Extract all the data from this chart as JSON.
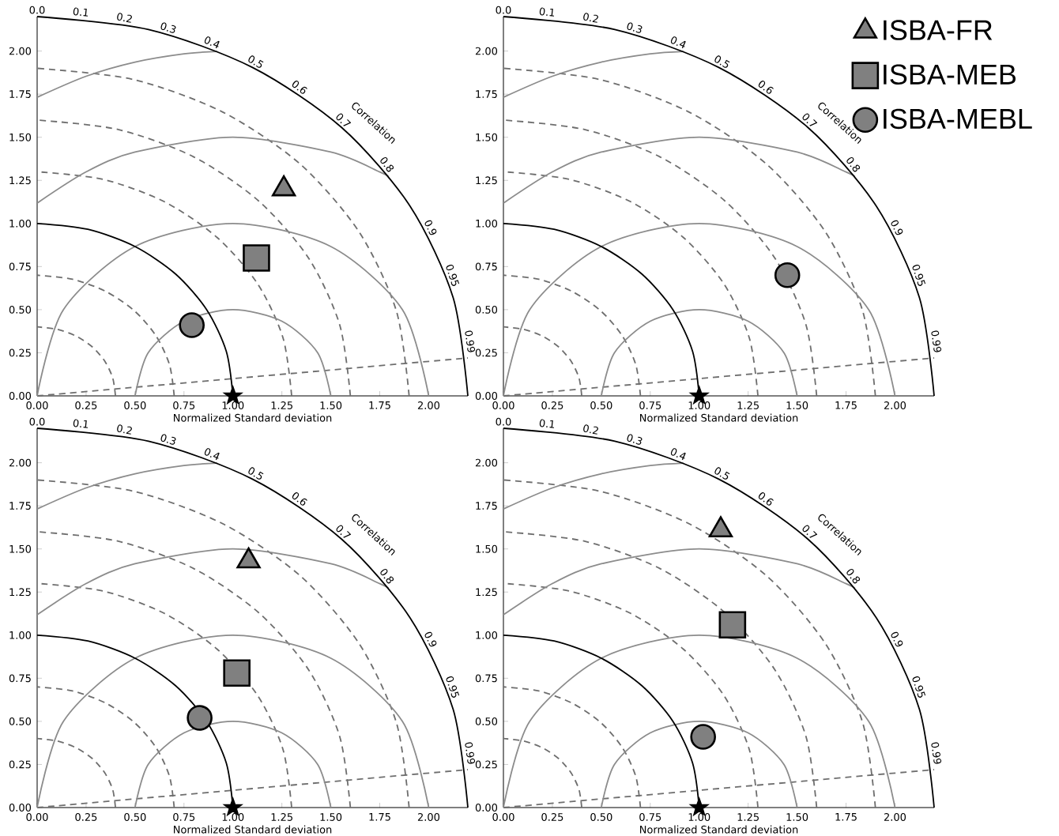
{
  "chart_data": [
    {
      "type": "scatter",
      "xlabel": "Normalized Standard deviation",
      "xlim": [
        0,
        2.2
      ],
      "ylim": [
        0,
        2.2
      ],
      "xticks": [
        {
          "value": 0,
          "label": "0.00"
        },
        {
          "value": 0.25,
          "label": "0.25"
        },
        {
          "value": 0.5,
          "label": "0.50"
        },
        {
          "value": 0.75,
          "label": "0.75"
        },
        {
          "value": 1,
          "label": "1.00"
        },
        {
          "value": 1.25,
          "label": "1.25"
        },
        {
          "value": 1.5,
          "label": "1.50"
        },
        {
          "value": 1.75,
          "label": "1.75"
        },
        {
          "value": 2,
          "label": "2.00"
        }
      ],
      "yticks": [
        {
          "value": 0,
          "label": "0.00"
        },
        {
          "value": 0.25,
          "label": "0.25"
        },
        {
          "value": 0.5,
          "label": "0.50"
        },
        {
          "value": 0.75,
          "label": "0.75"
        },
        {
          "value": 1,
          "label": "1.00"
        },
        {
          "value": 1.25,
          "label": "1.25"
        },
        {
          "value": 1.5,
          "label": "1.50"
        },
        {
          "value": 1.75,
          "label": "1.75"
        },
        {
          "value": 2,
          "label": "2.00"
        }
      ],
      "annotations": [
        "Correlation",
        {
          "text": "0.0",
          "x": 0,
          "y": 2.2
        },
        {
          "text": "0.1",
          "x": 0.22,
          "y": 2.189
        },
        {
          "text": "0.2",
          "x": 0.44,
          "y": 2.156
        },
        {
          "text": "0.3",
          "x": 0.66,
          "y": 2.099
        },
        {
          "text": "0.4",
          "x": 0.88,
          "y": 2.016
        },
        {
          "text": "0.5",
          "x": 1.1,
          "y": 1.905
        },
        {
          "text": "0.6",
          "x": 1.32,
          "y": 1.76
        },
        {
          "text": "0.7",
          "x": 1.54,
          "y": 1.571
        },
        {
          "text": "0.8",
          "x": 1.76,
          "y": 1.32
        },
        {
          "text": "0.9",
          "x": 1.98,
          "y": 0.959
        },
        {
          "text": "0.95",
          "x": 2.09,
          "y": 0.687
        },
        {
          "text": "0.99",
          "x": 2.178,
          "y": 0.31
        }
      ],
      "series": [
        {
          "type": "line",
          "color": "#6e6e6e",
          "line_style": "dashed",
          "x": [
            0.4,
            0.386,
            0.346,
            0.283,
            0.2,
            0.104,
            0
          ],
          "values": [
            0,
            0.104,
            0.2,
            0.283,
            0.346,
            0.386,
            0.4
          ]
        },
        {
          "type": "line",
          "color": "#6e6e6e",
          "line_style": "dashed",
          "x": [
            0.7,
            0.676,
            0.606,
            0.495,
            0.35,
            0.181,
            0
          ],
          "values": [
            0,
            0.181,
            0.35,
            0.495,
            0.606,
            0.676,
            0.7
          ]
        },
        {
          "type": "line",
          "color": "#6e6e6e",
          "line_style": "dashed",
          "x": [
            1.3,
            1.256,
            1.126,
            0.919,
            0.65,
            0.336,
            0
          ],
          "values": [
            0,
            0.336,
            0.65,
            0.919,
            1.126,
            1.256,
            1.3
          ]
        },
        {
          "type": "line",
          "color": "#6e6e6e",
          "line_style": "dashed",
          "x": [
            1.6,
            1.545,
            1.386,
            1.131,
            0.8,
            0.414,
            0
          ],
          "values": [
            0,
            0.414,
            0.8,
            1.131,
            1.386,
            1.545,
            1.6
          ]
        },
        {
          "type": "line",
          "color": "#6e6e6e",
          "line_style": "dashed",
          "x": [
            1.9,
            1.835,
            1.645,
            1.344,
            0.95,
            0.492,
            0
          ],
          "values": [
            0,
            0.492,
            0.95,
            1.344,
            1.645,
            1.835,
            1.9
          ]
        },
        {
          "type": "line",
          "color": "#6e6e6e",
          "line_style": "dashed",
          "x": [
            0,
            2.2
          ],
          "values": [
            0,
            0.22
          ]
        },
        {
          "type": "line",
          "color": "#8c8c8c",
          "line_style": "solid",
          "x": [
            1.5,
            1.433,
            1.25,
            1,
            0.75,
            0.567,
            0.5
          ],
          "values": [
            0,
            0.25,
            0.433,
            0.5,
            0.433,
            0.25,
            0
          ]
        },
        {
          "type": "line",
          "color": "#8c8c8c",
          "line_style": "solid",
          "x": [
            2,
            1.866,
            1.5,
            1,
            0.5,
            0.134,
            0
          ],
          "values": [
            0,
            0.5,
            0.866,
            1,
            0.866,
            0.5,
            0
          ]
        },
        {
          "type": "line",
          "color": "#8c8c8c",
          "line_style": "solid",
          "x": [
            0,
            0.25,
            0.5,
            1,
            1.5,
            1.75,
            1.795
          ],
          "values": [
            1.118,
            1.299,
            1.414,
            1.5,
            1.414,
            1.299,
            1.272
          ]
        },
        {
          "type": "line",
          "color": "#8c8c8c",
          "line_style": "solid",
          "x": [
            0,
            0.25,
            0.5,
            0.75,
            0.92
          ],
          "values": [
            1.732,
            1.854,
            1.936,
            1.984,
            1.998
          ]
        },
        {
          "type": "line",
          "color": "#000000",
          "line_style": "solid",
          "x": [
            1,
            0.966,
            0.866,
            0.707,
            0.5,
            0.259,
            0
          ],
          "values": [
            0,
            0.259,
            0.5,
            0.707,
            0.866,
            0.966,
            1
          ]
        },
        {
          "type": "line",
          "color": "#000000",
          "line_style": "solid",
          "x": [
            2.2,
            2.125,
            1.905,
            1.556,
            1.1,
            0.569,
            0
          ],
          "values": [
            0,
            0.569,
            1.1,
            1.556,
            1.905,
            2.125,
            2.2
          ]
        },
        {
          "marker": "star",
          "color": "#000000",
          "x": [
            1
          ],
          "values": [
            0
          ]
        },
        {
          "marker": "triangle",
          "color": "#808080",
          "x": [
            1.26
          ],
          "values": [
            1.2
          ]
        },
        {
          "marker": "square",
          "color": "#808080",
          "x": [
            1.12
          ],
          "values": [
            0.8
          ]
        },
        {
          "marker": "circle",
          "color": "#808080",
          "x": [
            0.79
          ],
          "values": [
            0.41
          ]
        }
      ]
    },
    {
      "type": "scatter",
      "xlabel": "Normalized Standard deviation",
      "xlim": [
        0,
        2.2
      ],
      "ylim": [
        0,
        2.2
      ],
      "legend": "right",
      "xticks": [
        {
          "value": 0,
          "label": "0.00"
        },
        {
          "value": 0.25,
          "label": "0.25"
        },
        {
          "value": 0.5,
          "label": "0.50"
        },
        {
          "value": 0.75,
          "label": "0.75"
        },
        {
          "value": 1,
          "label": "1.00"
        },
        {
          "value": 1.25,
          "label": "1.25"
        },
        {
          "value": 1.5,
          "label": "1.50"
        },
        {
          "value": 1.75,
          "label": "1.75"
        },
        {
          "value": 2,
          "label": "2.00"
        }
      ],
      "yticks": [
        {
          "value": 0,
          "label": "0.00"
        },
        {
          "value": 0.25,
          "label": "0.25"
        },
        {
          "value": 0.5,
          "label": "0.50"
        },
        {
          "value": 0.75,
          "label": "0.75"
        },
        {
          "value": 1,
          "label": "1.00"
        },
        {
          "value": 1.25,
          "label": "1.25"
        },
        {
          "value": 1.5,
          "label": "1.50"
        },
        {
          "value": 1.75,
          "label": "1.75"
        },
        {
          "value": 2,
          "label": "2.00"
        }
      ],
      "annotations": [
        "Correlation",
        {
          "text": "0.0",
          "x": 0,
          "y": 2.2
        },
        {
          "text": "0.1",
          "x": 0.22,
          "y": 2.189
        },
        {
          "text": "0.2",
          "x": 0.44,
          "y": 2.156
        },
        {
          "text": "0.3",
          "x": 0.66,
          "y": 2.099
        },
        {
          "text": "0.4",
          "x": 0.88,
          "y": 2.016
        },
        {
          "text": "0.5",
          "x": 1.1,
          "y": 1.905
        },
        {
          "text": "0.6",
          "x": 1.32,
          "y": 1.76
        },
        {
          "text": "0.7",
          "x": 1.54,
          "y": 1.571
        },
        {
          "text": "0.8",
          "x": 1.76,
          "y": 1.32
        },
        {
          "text": "0.9",
          "x": 1.98,
          "y": 0.959
        },
        {
          "text": "0.95",
          "x": 2.09,
          "y": 0.687
        },
        {
          "text": "0.99",
          "x": 2.178,
          "y": 0.31
        }
      ],
      "series": [
        {
          "type": "line",
          "color": "#6e6e6e",
          "line_style": "dashed",
          "x": [
            0.4,
            0.386,
            0.346,
            0.283,
            0.2,
            0.104,
            0
          ],
          "values": [
            0,
            0.104,
            0.2,
            0.283,
            0.346,
            0.386,
            0.4
          ]
        },
        {
          "type": "line",
          "color": "#6e6e6e",
          "line_style": "dashed",
          "x": [
            0.7,
            0.676,
            0.606,
            0.495,
            0.35,
            0.181,
            0
          ],
          "values": [
            0,
            0.181,
            0.35,
            0.495,
            0.606,
            0.676,
            0.7
          ]
        },
        {
          "type": "line",
          "color": "#6e6e6e",
          "line_style": "dashed",
          "x": [
            1.3,
            1.256,
            1.126,
            0.919,
            0.65,
            0.336,
            0
          ],
          "values": [
            0,
            0.336,
            0.65,
            0.919,
            1.126,
            1.256,
            1.3
          ]
        },
        {
          "type": "line",
          "color": "#6e6e6e",
          "line_style": "dashed",
          "x": [
            1.6,
            1.545,
            1.386,
            1.131,
            0.8,
            0.414,
            0
          ],
          "values": [
            0,
            0.414,
            0.8,
            1.131,
            1.386,
            1.545,
            1.6
          ]
        },
        {
          "type": "line",
          "color": "#6e6e6e",
          "line_style": "dashed",
          "x": [
            1.9,
            1.835,
            1.645,
            1.344,
            0.95,
            0.492,
            0
          ],
          "values": [
            0,
            0.492,
            0.95,
            1.344,
            1.645,
            1.835,
            1.9
          ]
        },
        {
          "type": "line",
          "color": "#6e6e6e",
          "line_style": "dashed",
          "x": [
            0,
            2.2
          ],
          "values": [
            0,
            0.22
          ]
        },
        {
          "type": "line",
          "color": "#8c8c8c",
          "line_style": "solid",
          "x": [
            1.5,
            1.433,
            1.25,
            1,
            0.75,
            0.567,
            0.5
          ],
          "values": [
            0,
            0.25,
            0.433,
            0.5,
            0.433,
            0.25,
            0
          ]
        },
        {
          "type": "line",
          "color": "#8c8c8c",
          "line_style": "solid",
          "x": [
            2,
            1.866,
            1.5,
            1,
            0.5,
            0.134,
            0
          ],
          "values": [
            0,
            0.5,
            0.866,
            1,
            0.866,
            0.5,
            0
          ]
        },
        {
          "type": "line",
          "color": "#8c8c8c",
          "line_style": "solid",
          "x": [
            0,
            0.25,
            0.5,
            1,
            1.5,
            1.75,
            1.795
          ],
          "values": [
            1.118,
            1.299,
            1.414,
            1.5,
            1.414,
            1.299,
            1.272
          ]
        },
        {
          "type": "line",
          "color": "#8c8c8c",
          "line_style": "solid",
          "x": [
            0,
            0.25,
            0.5,
            0.75,
            0.92
          ],
          "values": [
            1.732,
            1.854,
            1.936,
            1.984,
            1.998
          ]
        },
        {
          "type": "line",
          "color": "#000000",
          "line_style": "solid",
          "x": [
            1,
            0.966,
            0.866,
            0.707,
            0.5,
            0.259,
            0
          ],
          "values": [
            0,
            0.259,
            0.5,
            0.707,
            0.866,
            0.966,
            1
          ]
        },
        {
          "type": "line",
          "color": "#000000",
          "line_style": "solid",
          "x": [
            2.2,
            2.125,
            1.905,
            1.556,
            1.1,
            0.569,
            0
          ],
          "values": [
            0,
            0.569,
            1.1,
            1.556,
            1.905,
            2.125,
            2.2
          ]
        },
        {
          "marker": "star",
          "color": "#000000",
          "x": [
            1
          ],
          "values": [
            0
          ]
        },
        {
          "name": "ISBA-FR",
          "marker": "triangle",
          "color": "#808080",
          "x": [
            null
          ],
          "values": [
            null
          ]
        },
        {
          "name": "ISBA-MEB",
          "marker": "square",
          "color": "#808080",
          "x": [
            null
          ],
          "values": [
            null
          ]
        },
        {
          "name": "ISBA-MEBL",
          "marker": "circle",
          "color": "#808080",
          "x": [
            1.45
          ],
          "values": [
            0.7
          ]
        }
      ]
    },
    {
      "type": "scatter",
      "xlabel": "Normalized Standard deviation",
      "xlim": [
        0,
        2.2
      ],
      "ylim": [
        0,
        2.2
      ],
      "xticks": [
        {
          "value": 0,
          "label": "0.00"
        },
        {
          "value": 0.25,
          "label": "0.25"
        },
        {
          "value": 0.5,
          "label": "0.50"
        },
        {
          "value": 0.75,
          "label": "0.75"
        },
        {
          "value": 1,
          "label": "1.00"
        },
        {
          "value": 1.25,
          "label": "1.25"
        },
        {
          "value": 1.5,
          "label": "1.50"
        },
        {
          "value": 1.75,
          "label": "1.75"
        },
        {
          "value": 2,
          "label": "2.00"
        }
      ],
      "yticks": [
        {
          "value": 0,
          "label": "0.00"
        },
        {
          "value": 0.25,
          "label": "0.25"
        },
        {
          "value": 0.5,
          "label": "0.50"
        },
        {
          "value": 0.75,
          "label": "0.75"
        },
        {
          "value": 1,
          "label": "1.00"
        },
        {
          "value": 1.25,
          "label": "1.25"
        },
        {
          "value": 1.5,
          "label": "1.50"
        },
        {
          "value": 1.75,
          "label": "1.75"
        },
        {
          "value": 2,
          "label": "2.00"
        }
      ],
      "annotations": [
        "Correlation",
        {
          "text": "0.0",
          "x": 0,
          "y": 2.2
        },
        {
          "text": "0.1",
          "x": 0.22,
          "y": 2.189
        },
        {
          "text": "0.2",
          "x": 0.44,
          "y": 2.156
        },
        {
          "text": "0.3",
          "x": 0.66,
          "y": 2.099
        },
        {
          "text": "0.4",
          "x": 0.88,
          "y": 2.016
        },
        {
          "text": "0.5",
          "x": 1.1,
          "y": 1.905
        },
        {
          "text": "0.6",
          "x": 1.32,
          "y": 1.76
        },
        {
          "text": "0.7",
          "x": 1.54,
          "y": 1.571
        },
        {
          "text": "0.8",
          "x": 1.76,
          "y": 1.32
        },
        {
          "text": "0.9",
          "x": 1.98,
          "y": 0.959
        },
        {
          "text": "0.95",
          "x": 2.09,
          "y": 0.687
        },
        {
          "text": "0.99",
          "x": 2.178,
          "y": 0.31
        }
      ],
      "series": [
        {
          "type": "line",
          "color": "#6e6e6e",
          "line_style": "dashed",
          "x": [
            0.4,
            0.386,
            0.346,
            0.283,
            0.2,
            0.104,
            0
          ],
          "values": [
            0,
            0.104,
            0.2,
            0.283,
            0.346,
            0.386,
            0.4
          ]
        },
        {
          "type": "line",
          "color": "#6e6e6e",
          "line_style": "dashed",
          "x": [
            0.7,
            0.676,
            0.606,
            0.495,
            0.35,
            0.181,
            0
          ],
          "values": [
            0,
            0.181,
            0.35,
            0.495,
            0.606,
            0.676,
            0.7
          ]
        },
        {
          "type": "line",
          "color": "#6e6e6e",
          "line_style": "dashed",
          "x": [
            1.3,
            1.256,
            1.126,
            0.919,
            0.65,
            0.336,
            0
          ],
          "values": [
            0,
            0.336,
            0.65,
            0.919,
            1.126,
            1.256,
            1.3
          ]
        },
        {
          "type": "line",
          "color": "#6e6e6e",
          "line_style": "dashed",
          "x": [
            1.6,
            1.545,
            1.386,
            1.131,
            0.8,
            0.414,
            0
          ],
          "values": [
            0,
            0.414,
            0.8,
            1.131,
            1.386,
            1.545,
            1.6
          ]
        },
        {
          "type": "line",
          "color": "#6e6e6e",
          "line_style": "dashed",
          "x": [
            1.9,
            1.835,
            1.645,
            1.344,
            0.95,
            0.492,
            0
          ],
          "values": [
            0,
            0.492,
            0.95,
            1.344,
            1.645,
            1.835,
            1.9
          ]
        },
        {
          "type": "line",
          "color": "#6e6e6e",
          "line_style": "dashed",
          "x": [
            0,
            2.2
          ],
          "values": [
            0,
            0.22
          ]
        },
        {
          "type": "line",
          "color": "#8c8c8c",
          "line_style": "solid",
          "x": [
            1.5,
            1.433,
            1.25,
            1,
            0.75,
            0.567,
            0.5
          ],
          "values": [
            0,
            0.25,
            0.433,
            0.5,
            0.433,
            0.25,
            0
          ]
        },
        {
          "type": "line",
          "color": "#8c8c8c",
          "line_style": "solid",
          "x": [
            2,
            1.866,
            1.5,
            1,
            0.5,
            0.134,
            0
          ],
          "values": [
            0,
            0.5,
            0.866,
            1,
            0.866,
            0.5,
            0
          ]
        },
        {
          "type": "line",
          "color": "#8c8c8c",
          "line_style": "solid",
          "x": [
            0,
            0.25,
            0.5,
            1,
            1.5,
            1.75,
            1.795
          ],
          "values": [
            1.118,
            1.299,
            1.414,
            1.5,
            1.414,
            1.299,
            1.272
          ]
        },
        {
          "type": "line",
          "color": "#8c8c8c",
          "line_style": "solid",
          "x": [
            0,
            0.25,
            0.5,
            0.75,
            0.92
          ],
          "values": [
            1.732,
            1.854,
            1.936,
            1.984,
            1.998
          ]
        },
        {
          "type": "line",
          "color": "#000000",
          "line_style": "solid",
          "x": [
            1,
            0.966,
            0.866,
            0.707,
            0.5,
            0.259,
            0
          ],
          "values": [
            0,
            0.259,
            0.5,
            0.707,
            0.866,
            0.966,
            1
          ]
        },
        {
          "type": "line",
          "color": "#000000",
          "line_style": "solid",
          "x": [
            2.2,
            2.125,
            1.905,
            1.556,
            1.1,
            0.569,
            0
          ],
          "values": [
            0,
            0.569,
            1.1,
            1.556,
            1.905,
            2.125,
            2.2
          ]
        },
        {
          "marker": "star",
          "color": "#000000",
          "x": [
            1
          ],
          "values": [
            0
          ]
        },
        {
          "marker": "triangle",
          "color": "#808080",
          "x": [
            1.08
          ],
          "values": [
            1.43
          ]
        },
        {
          "marker": "square",
          "color": "#808080",
          "x": [
            1.02
          ],
          "values": [
            0.78
          ]
        },
        {
          "marker": "circle",
          "color": "#808080",
          "x": [
            0.83
          ],
          "values": [
            0.52
          ]
        }
      ]
    },
    {
      "type": "scatter",
      "xlabel": "Normalized Standard deviation",
      "xlim": [
        0,
        2.2
      ],
      "ylim": [
        0,
        2.2
      ],
      "xticks": [
        {
          "value": 0,
          "label": "0.00"
        },
        {
          "value": 0.25,
          "label": "0.25"
        },
        {
          "value": 0.5,
          "label": "0.50"
        },
        {
          "value": 0.75,
          "label": "0.75"
        },
        {
          "value": 1,
          "label": "1.00"
        },
        {
          "value": 1.25,
          "label": "1.25"
        },
        {
          "value": 1.5,
          "label": "1.50"
        },
        {
          "value": 1.75,
          "label": "1.75"
        },
        {
          "value": 2,
          "label": "2.00"
        }
      ],
      "yticks": [
        {
          "value": 0,
          "label": "0.00"
        },
        {
          "value": 0.25,
          "label": "0.25"
        },
        {
          "value": 0.5,
          "label": "0.50"
        },
        {
          "value": 0.75,
          "label": "0.75"
        },
        {
          "value": 1,
          "label": "1.00"
        },
        {
          "value": 1.25,
          "label": "1.25"
        },
        {
          "value": 1.5,
          "label": "1.50"
        },
        {
          "value": 1.75,
          "label": "1.75"
        },
        {
          "value": 2,
          "label": "2.00"
        }
      ],
      "annotations": [
        "Correlation",
        {
          "text": "0.0",
          "x": 0,
          "y": 2.2
        },
        {
          "text": "0.1",
          "x": 0.22,
          "y": 2.189
        },
        {
          "text": "0.2",
          "x": 0.44,
          "y": 2.156
        },
        {
          "text": "0.3",
          "x": 0.66,
          "y": 2.099
        },
        {
          "text": "0.4",
          "x": 0.88,
          "y": 2.016
        },
        {
          "text": "0.5",
          "x": 1.1,
          "y": 1.905
        },
        {
          "text": "0.6",
          "x": 1.32,
          "y": 1.76
        },
        {
          "text": "0.7",
          "x": 1.54,
          "y": 1.571
        },
        {
          "text": "0.8",
          "x": 1.76,
          "y": 1.32
        },
        {
          "text": "0.9",
          "x": 1.98,
          "y": 0.959
        },
        {
          "text": "0.95",
          "x": 2.09,
          "y": 0.687
        },
        {
          "text": "0.99",
          "x": 2.178,
          "y": 0.31
        }
      ],
      "series": [
        {
          "type": "line",
          "color": "#6e6e6e",
          "line_style": "dashed",
          "x": [
            0.4,
            0.386,
            0.346,
            0.283,
            0.2,
            0.104,
            0
          ],
          "values": [
            0,
            0.104,
            0.2,
            0.283,
            0.346,
            0.386,
            0.4
          ]
        },
        {
          "type": "line",
          "color": "#6e6e6e",
          "line_style": "dashed",
          "x": [
            0.7,
            0.676,
            0.606,
            0.495,
            0.35,
            0.181,
            0
          ],
          "values": [
            0,
            0.181,
            0.35,
            0.495,
            0.606,
            0.676,
            0.7
          ]
        },
        {
          "type": "line",
          "color": "#6e6e6e",
          "line_style": "dashed",
          "x": [
            1.3,
            1.256,
            1.126,
            0.919,
            0.65,
            0.336,
            0
          ],
          "values": [
            0,
            0.336,
            0.65,
            0.919,
            1.126,
            1.256,
            1.3
          ]
        },
        {
          "type": "line",
          "color": "#6e6e6e",
          "line_style": "dashed",
          "x": [
            1.6,
            1.545,
            1.386,
            1.131,
            0.8,
            0.414,
            0
          ],
          "values": [
            0,
            0.414,
            0.8,
            1.131,
            1.386,
            1.545,
            1.6
          ]
        },
        {
          "type": "line",
          "color": "#6e6e6e",
          "line_style": "dashed",
          "x": [
            1.9,
            1.835,
            1.645,
            1.344,
            0.95,
            0.492,
            0
          ],
          "values": [
            0,
            0.492,
            0.95,
            1.344,
            1.645,
            1.835,
            1.9
          ]
        },
        {
          "type": "line",
          "color": "#6e6e6e",
          "line_style": "dashed",
          "x": [
            0,
            2.2
          ],
          "values": [
            0,
            0.22
          ]
        },
        {
          "type": "line",
          "color": "#8c8c8c",
          "line_style": "solid",
          "x": [
            1.5,
            1.433,
            1.25,
            1,
            0.75,
            0.567,
            0.5
          ],
          "values": [
            0,
            0.25,
            0.433,
            0.5,
            0.433,
            0.25,
            0
          ]
        },
        {
          "type": "line",
          "color": "#8c8c8c",
          "line_style": "solid",
          "x": [
            2,
            1.866,
            1.5,
            1,
            0.5,
            0.134,
            0
          ],
          "values": [
            0,
            0.5,
            0.866,
            1,
            0.866,
            0.5,
            0
          ]
        },
        {
          "type": "line",
          "color": "#8c8c8c",
          "line_style": "solid",
          "x": [
            0,
            0.25,
            0.5,
            1,
            1.5,
            1.75,
            1.795
          ],
          "values": [
            1.118,
            1.299,
            1.414,
            1.5,
            1.414,
            1.299,
            1.272
          ]
        },
        {
          "type": "line",
          "color": "#8c8c8c",
          "line_style": "solid",
          "x": [
            0,
            0.25,
            0.5,
            0.75,
            0.92
          ],
          "values": [
            1.732,
            1.854,
            1.936,
            1.984,
            1.998
          ]
        },
        {
          "type": "line",
          "color": "#000000",
          "line_style": "solid",
          "x": [
            1,
            0.966,
            0.866,
            0.707,
            0.5,
            0.259,
            0
          ],
          "values": [
            0,
            0.259,
            0.5,
            0.707,
            0.866,
            0.966,
            1
          ]
        },
        {
          "type": "line",
          "color": "#000000",
          "line_style": "solid",
          "x": [
            2.2,
            2.125,
            1.905,
            1.556,
            1.1,
            0.569,
            0
          ],
          "values": [
            0,
            0.569,
            1.1,
            1.556,
            1.905,
            2.125,
            2.2
          ]
        },
        {
          "marker": "star",
          "color": "#000000",
          "x": [
            1
          ],
          "values": [
            0
          ]
        },
        {
          "marker": "triangle",
          "color": "#808080",
          "x": [
            1.11
          ],
          "values": [
            1.61
          ]
        },
        {
          "marker": "square",
          "color": "#808080",
          "x": [
            1.17
          ],
          "values": [
            1.06
          ]
        },
        {
          "marker": "circle",
          "color": "#808080",
          "x": [
            1.02
          ],
          "values": [
            0.41
          ]
        }
      ]
    }
  ]
}
